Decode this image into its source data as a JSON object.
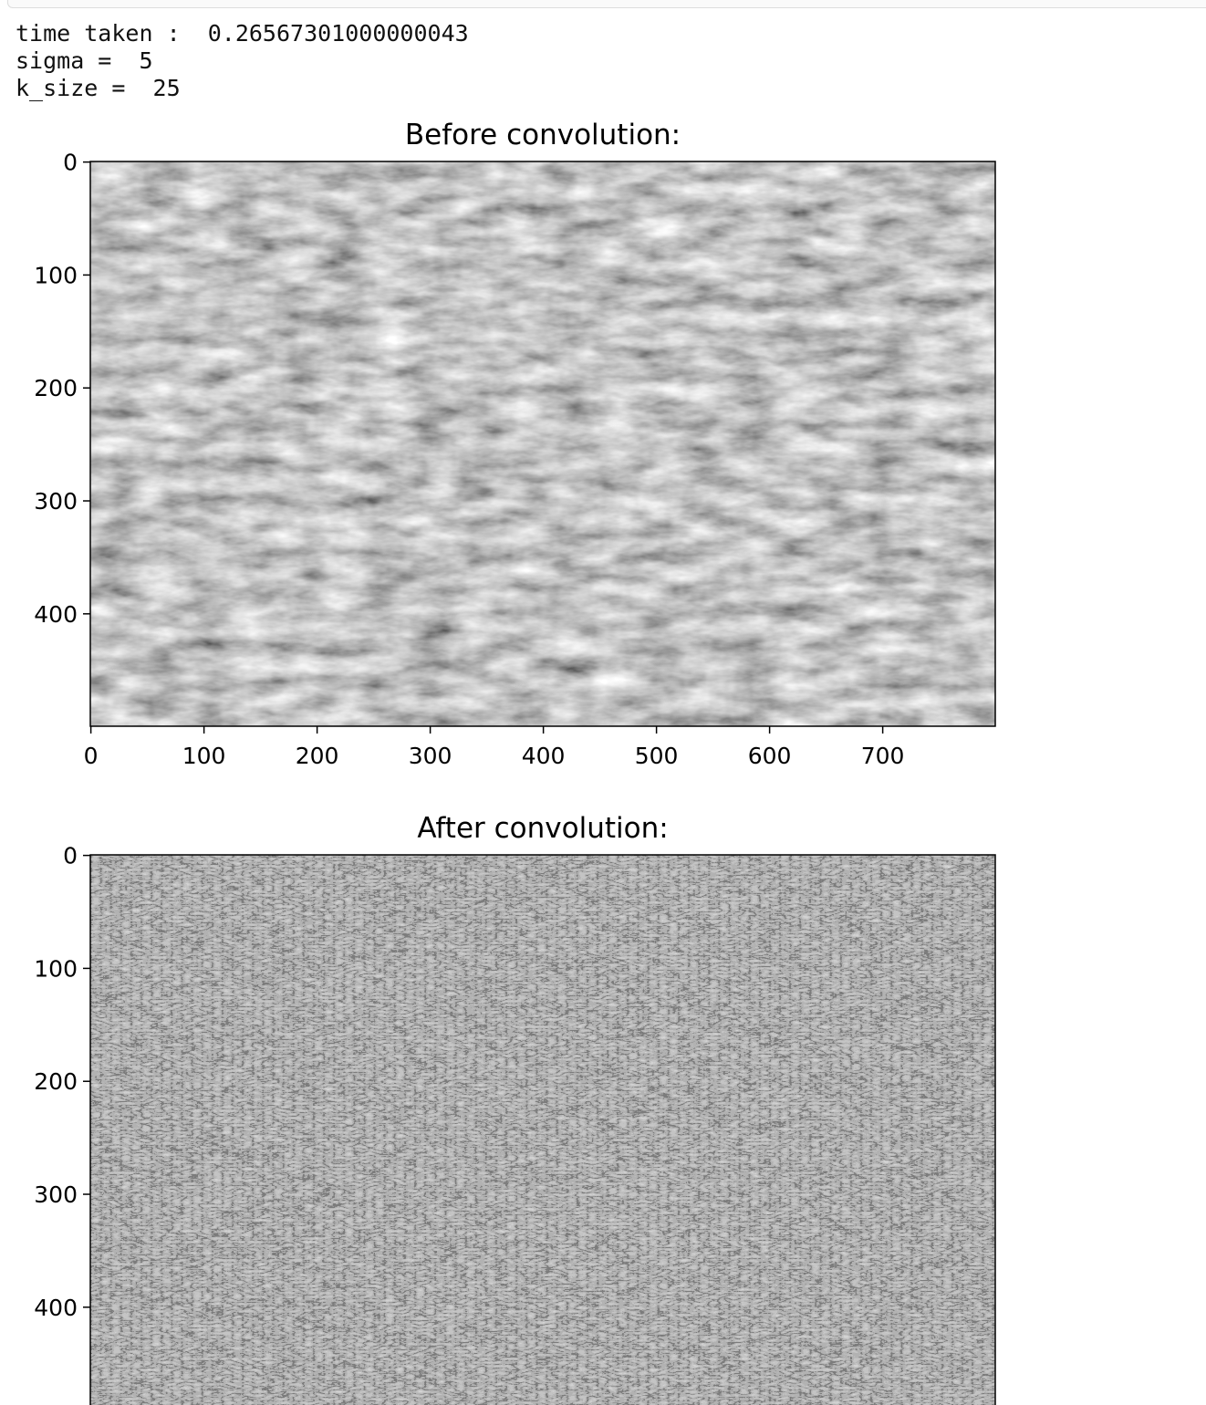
{
  "output": {
    "lines": [
      "time taken :  0.26567301000000043",
      "sigma =  5",
      "k_size =  25"
    ]
  },
  "chart_data": [
    {
      "type": "image",
      "title": "Before convolution:",
      "xlim": [
        -0.5,
        799.5
      ],
      "ylim": [
        499.5,
        -0.5
      ],
      "xticks": [
        0,
        100,
        200,
        300,
        400,
        500,
        600,
        700
      ],
      "yticks": [
        0,
        100,
        200,
        300,
        400
      ]
    },
    {
      "type": "image",
      "title": "After convolution:",
      "xlim": [
        -0.5,
        799.5
      ],
      "ylim": [
        499.5,
        -0.5
      ],
      "yticks": [
        0,
        100,
        200,
        300,
        400
      ]
    }
  ]
}
